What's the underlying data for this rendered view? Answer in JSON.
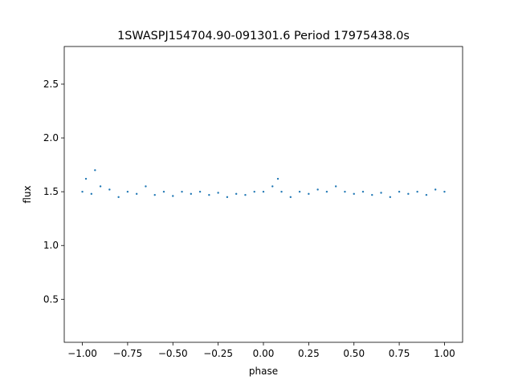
{
  "chart_data": {
    "type": "scatter",
    "title": "1SWASPJ154704.90-091301.6 Period 17975438.0s",
    "xlabel": "phase",
    "ylabel": "flux",
    "xlim": [
      -1.1,
      1.1
    ],
    "ylim": [
      0.1,
      2.85
    ],
    "xticks": [
      -1.0,
      -0.75,
      -0.5,
      -0.25,
      0.0,
      0.25,
      0.5,
      0.75,
      1.0
    ],
    "xtick_labels": [
      "−1.00",
      "−0.75",
      "−0.50",
      "−0.25",
      "0.00",
      "0.25",
      "0.50",
      "0.75",
      "1.00"
    ],
    "yticks": [
      0.5,
      1.0,
      1.5,
      2.0,
      2.5
    ],
    "ytick_labels": [
      "0.5",
      "1.0",
      "1.5",
      "2.0",
      "2.5"
    ],
    "grid": false,
    "marker_color": "#1f77b4",
    "series": [
      {
        "values": [
          [
            -1.0,
            1.5
          ],
          [
            -0.98,
            1.62
          ],
          [
            -0.95,
            1.48
          ],
          [
            -0.93,
            1.7
          ],
          [
            -0.9,
            1.55
          ],
          [
            -0.85,
            1.52
          ],
          [
            -0.8,
            1.45
          ],
          [
            -0.75,
            1.5
          ],
          [
            -0.7,
            1.48
          ],
          [
            -0.65,
            1.55
          ],
          [
            -0.6,
            1.47
          ],
          [
            -0.55,
            1.5
          ],
          [
            -0.5,
            1.46
          ],
          [
            -0.45,
            1.5
          ],
          [
            -0.4,
            1.48
          ],
          [
            -0.35,
            1.5
          ],
          [
            -0.3,
            1.47
          ],
          [
            -0.25,
            1.49
          ],
          [
            -0.2,
            1.45
          ],
          [
            -0.15,
            1.48
          ],
          [
            -0.1,
            1.47
          ],
          [
            -0.05,
            1.5
          ],
          [
            0.0,
            1.5
          ],
          [
            0.05,
            1.55
          ],
          [
            0.08,
            1.62
          ],
          [
            0.1,
            1.5
          ],
          [
            0.15,
            1.45
          ],
          [
            0.2,
            1.5
          ],
          [
            0.25,
            1.48
          ],
          [
            0.3,
            1.52
          ],
          [
            0.35,
            1.5
          ],
          [
            0.4,
            1.55
          ],
          [
            0.45,
            1.5
          ],
          [
            0.5,
            1.48
          ],
          [
            0.55,
            1.5
          ],
          [
            0.6,
            1.47
          ],
          [
            0.65,
            1.49
          ],
          [
            0.7,
            1.45
          ],
          [
            0.75,
            1.5
          ],
          [
            0.8,
            1.48
          ],
          [
            0.85,
            1.5
          ],
          [
            0.9,
            1.47
          ],
          [
            0.95,
            1.52
          ],
          [
            1.0,
            1.5
          ]
        ]
      }
    ]
  }
}
